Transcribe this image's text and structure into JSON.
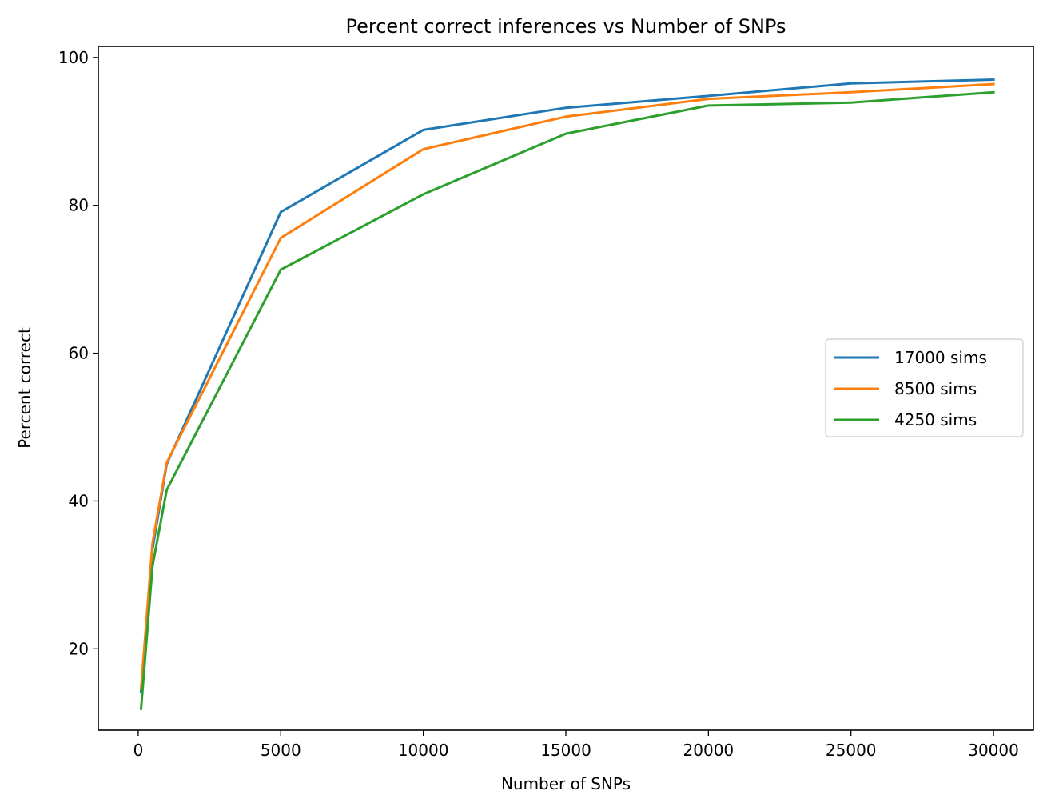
{
  "chart_data": {
    "type": "line",
    "title": "Percent correct inferences vs Number of SNPs",
    "xlabel": "Number of SNPs",
    "ylabel": "Percent correct",
    "xlim": [
      -1400,
      31400
    ],
    "ylim": [
      9.0,
      101.5
    ],
    "x_ticks": [
      0,
      5000,
      10000,
      15000,
      20000,
      25000,
      30000
    ],
    "x_tick_labels": [
      "0",
      "5000",
      "10000",
      "15000",
      "20000",
      "25000",
      "30000"
    ],
    "y_ticks": [
      20,
      40,
      60,
      80,
      100
    ],
    "y_tick_labels": [
      "20",
      "40",
      "60",
      "80",
      "100"
    ],
    "grid": false,
    "legend_position": "center-right",
    "x": [
      100,
      500,
      1000,
      5000,
      10000,
      15000,
      20000,
      25000,
      30000
    ],
    "series": [
      {
        "name": "17000 sims",
        "color": "#1f77b4",
        "values": [
          14.2,
          33.5,
          45.0,
          79.1,
          90.2,
          93.2,
          94.8,
          96.5,
          97.0
        ]
      },
      {
        "name": "8500 sims",
        "color": "#ff7f0e",
        "values": [
          14.6,
          34.3,
          45.2,
          75.6,
          87.6,
          92.0,
          94.4,
          95.3,
          96.4
        ]
      },
      {
        "name": "4250 sims",
        "color": "#2ca02c",
        "values": [
          11.9,
          31.2,
          41.5,
          71.3,
          81.5,
          89.7,
          93.5,
          93.9,
          95.3
        ]
      }
    ]
  }
}
